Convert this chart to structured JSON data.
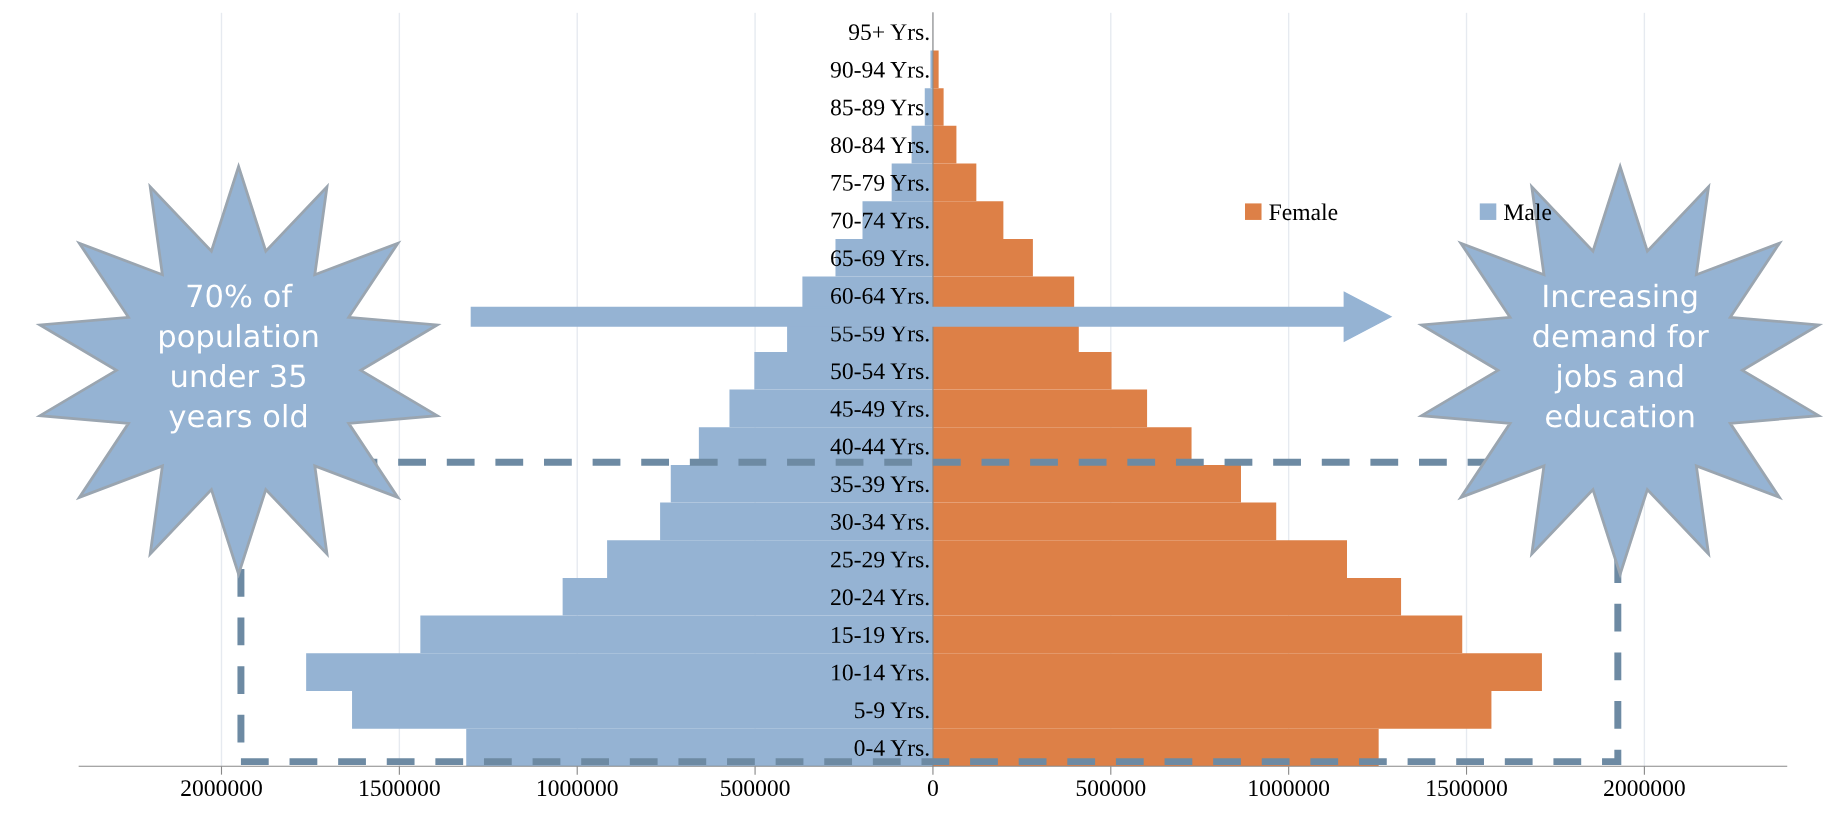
{
  "chart_data": {
    "type": "bar",
    "orientation": "horizontal",
    "stacked": true,
    "categories": [
      "95+ Yrs.",
      "90-94 Yrs.",
      "85-89 Yrs.",
      "80-84 Yrs.",
      "75-79 Yrs.",
      "70-74 Yrs.",
      "65-69 Yrs.",
      "60-64 Yrs.",
      "55-59 Yrs.",
      "50-54 Yrs.",
      "45-49 Yrs.",
      "40-44 Yrs.",
      "35-39 Yrs.",
      "30-34 Yrs.",
      "25-29 Yrs.",
      "20-24 Yrs.",
      "15-19 Yrs.",
      "10-14 Yrs.",
      "5-9 Yrs.",
      "0-4 Yrs."
    ],
    "series": [
      {
        "name": "Female",
        "color": "#dd8047",
        "values": [
          null,
          16000,
          30000,
          66000,
          122000,
          198000,
          281000,
          397000,
          410000,
          502000,
          602000,
          727000,
          866000,
          965000,
          1164000,
          1316000,
          1488000,
          1712000,
          1570000,
          1253000
        ]
      },
      {
        "name": "Male",
        "color": "#95b3d3",
        "values": [
          null,
          -7000,
          -23000,
          -60000,
          -116000,
          -198000,
          -274000,
          -367000,
          -410000,
          -502000,
          -572000,
          -658000,
          -737000,
          -767000,
          -916000,
          -1041000,
          -1441000,
          -1762000,
          -1633000,
          -1312000
        ]
      }
    ],
    "xlim": [
      -2400000,
      2400000
    ],
    "xticks": [
      {
        "value": -2000000,
        "label": "2000000"
      },
      {
        "value": -1500000,
        "label": "1500000"
      },
      {
        "value": -1000000,
        "label": "1000000"
      },
      {
        "value": -500000,
        "label": "500000"
      },
      0,
      500000,
      1000000,
      1500000,
      2000000
    ],
    "grid": "x",
    "legend": "top right",
    "annotations": [
      "70% of\npopulation\nunder 35\nyears old",
      "Increasing\ndemand for\njobs and\neducation"
    ]
  }
}
